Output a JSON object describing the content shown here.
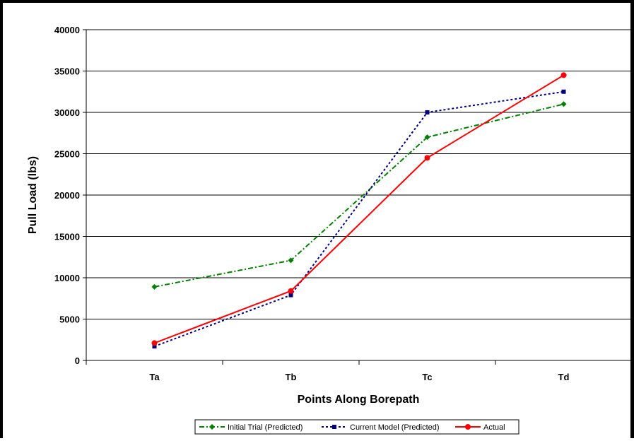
{
  "chart_data": {
    "type": "line",
    "title": "",
    "xlabel": "Points Along Borepath",
    "ylabel": "Pull Load (lbs)",
    "categories": [
      "Ta",
      "Tb",
      "Tc",
      "Td"
    ],
    "ylim": [
      0,
      40000
    ],
    "yticks": [
      0,
      5000,
      10000,
      15000,
      20000,
      25000,
      30000,
      35000,
      40000
    ],
    "grid": "horizontal",
    "legend_position": "bottom",
    "series": [
      {
        "name": "Initial Trial (Predicted)",
        "values": [
          8900,
          12100,
          27000,
          31000
        ],
        "color": "#008000",
        "line_style": "dash-dot",
        "marker": "diamond"
      },
      {
        "name": "Current Model (Predicted)",
        "values": [
          1700,
          7900,
          30000,
          32500
        ],
        "color": "#000080",
        "line_style": "dotted",
        "marker": "square"
      },
      {
        "name": "Actual",
        "values": [
          2100,
          8400,
          24500,
          34500
        ],
        "color": "#ff0000",
        "line_style": "solid",
        "marker": "circle"
      }
    ]
  }
}
